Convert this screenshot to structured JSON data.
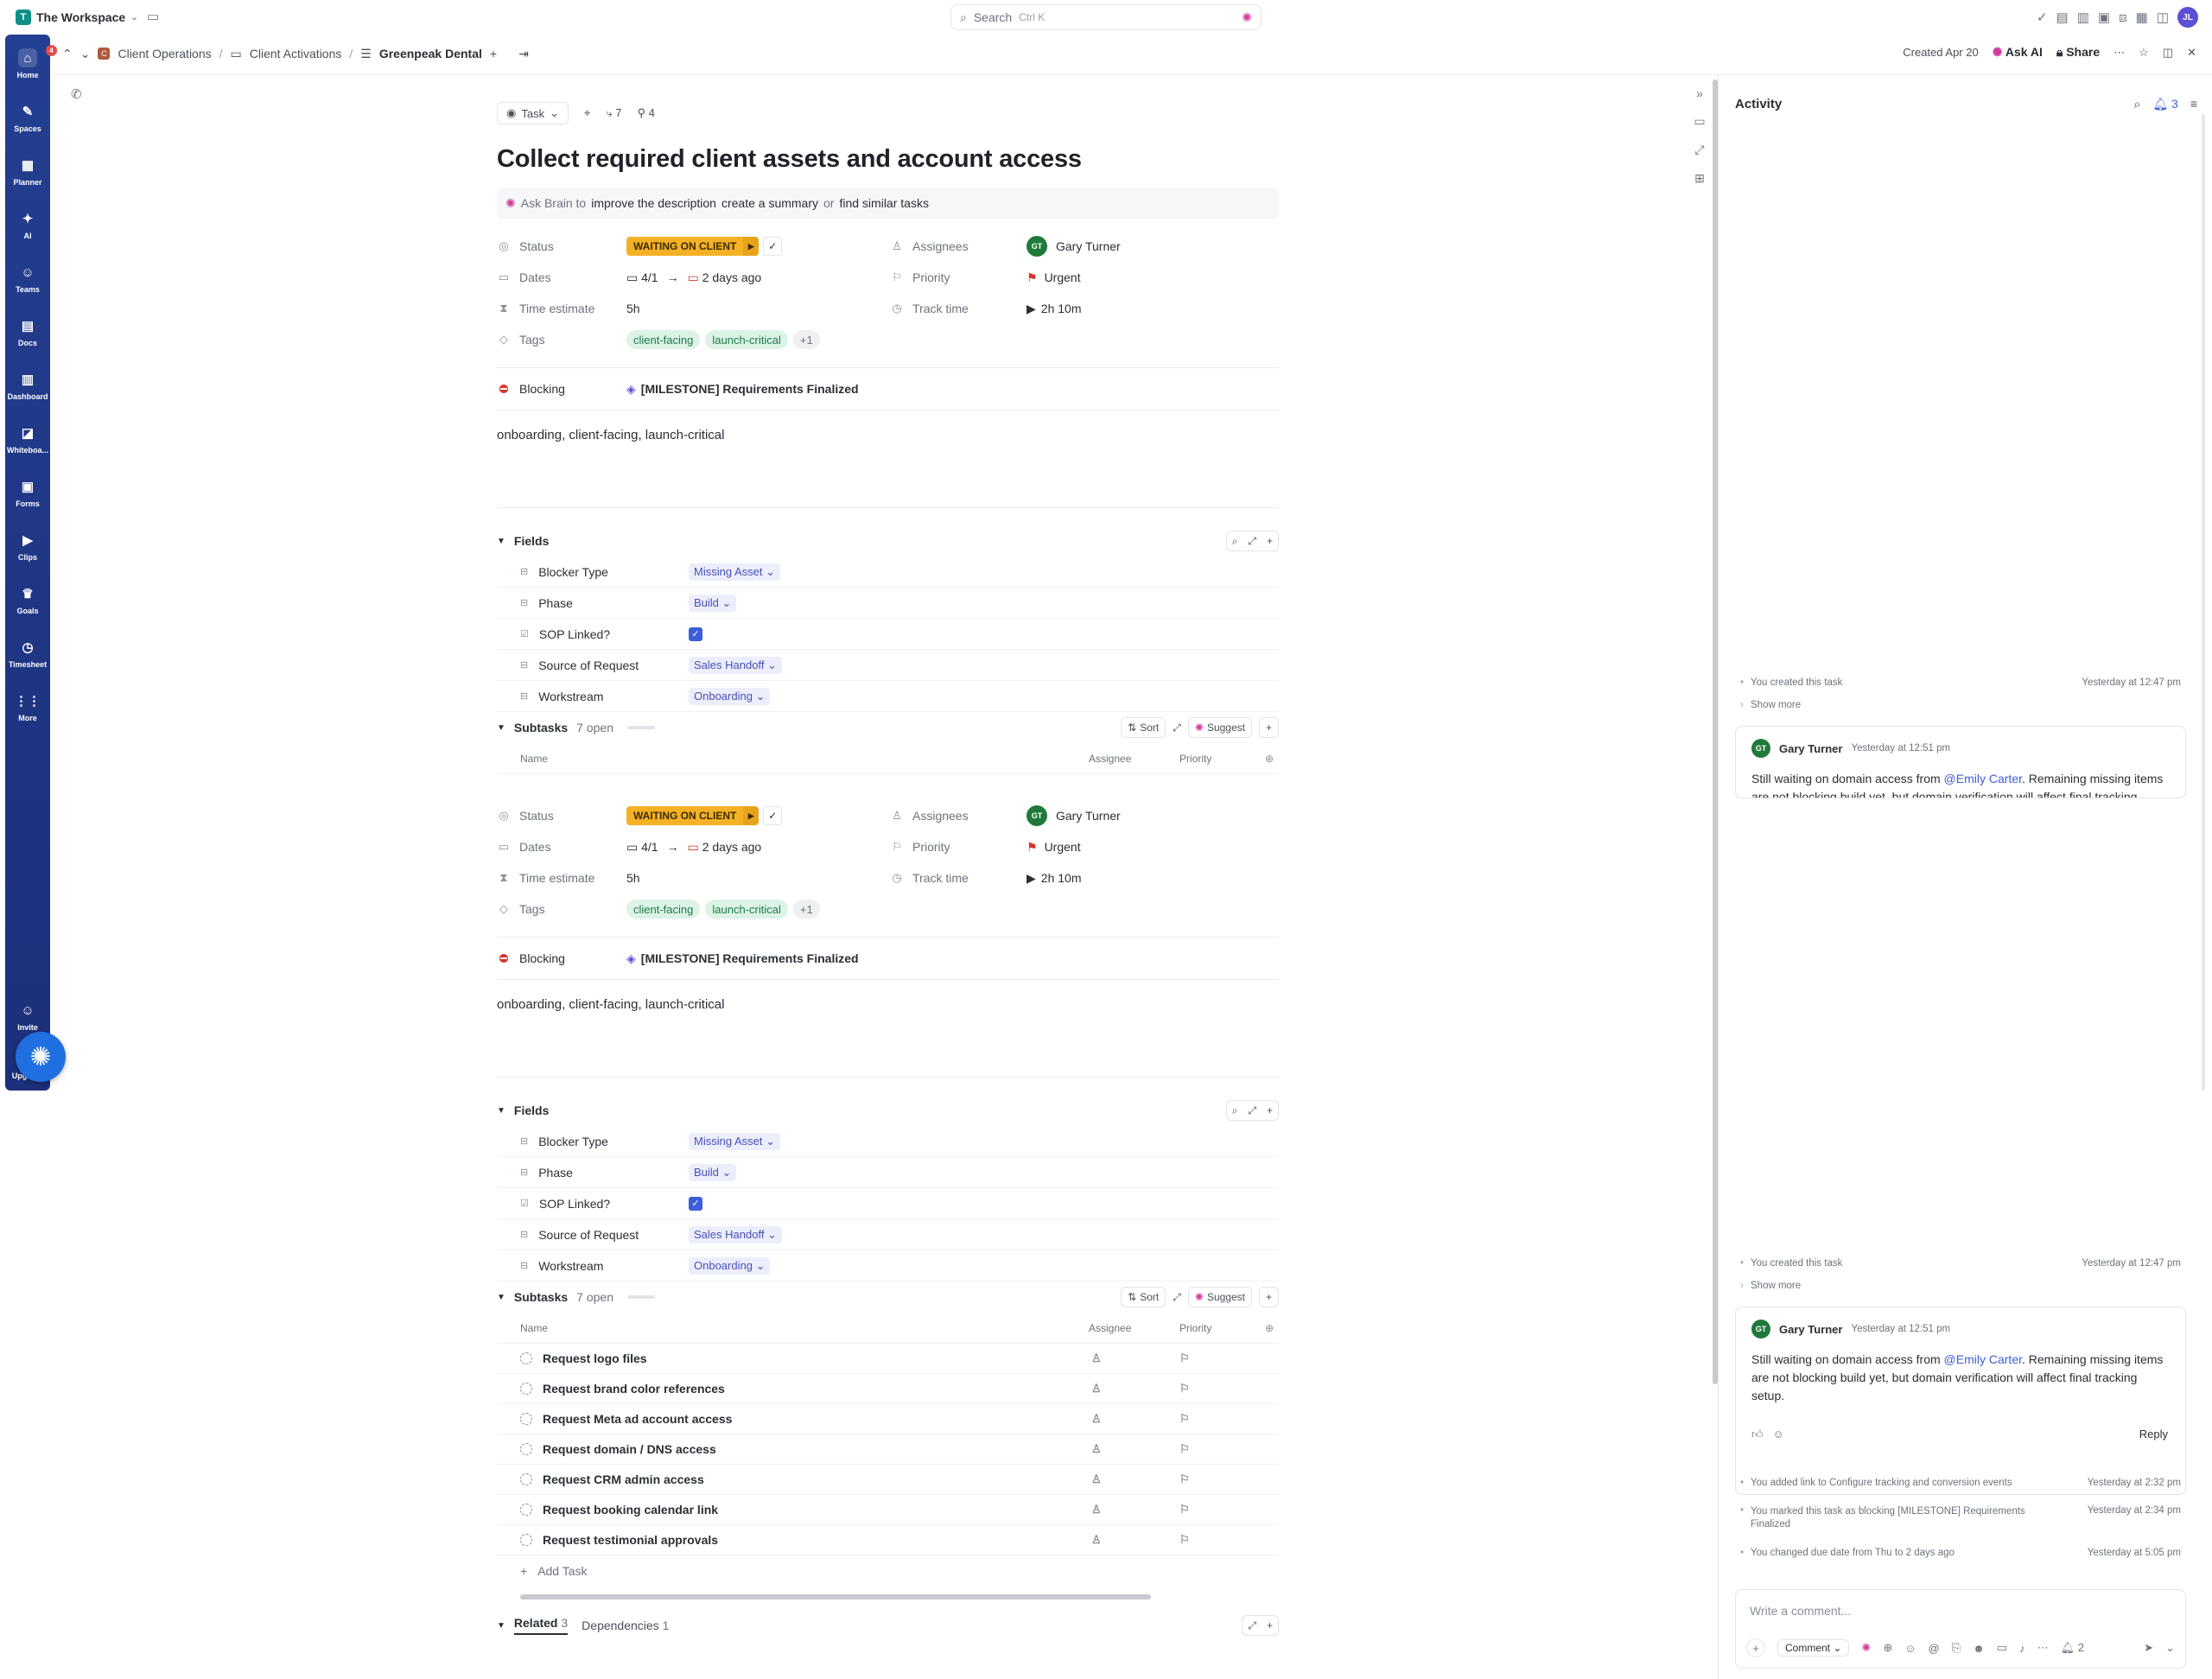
{
  "topbar": {
    "workspace": "The Workspace",
    "workspace_initial": "T",
    "search_placeholder": "Search",
    "search_shortcut": "Ctrl K",
    "user_initials": "JL"
  },
  "sidebar": {
    "items": [
      {
        "label": "Home",
        "icon": "home-icon",
        "badge": "4"
      },
      {
        "label": "Spaces",
        "icon": "spaces-icon"
      },
      {
        "label": "Planner",
        "icon": "calendar-icon"
      },
      {
        "label": "AI",
        "icon": "ai-icon"
      },
      {
        "label": "Teams",
        "icon": "teams-icon"
      },
      {
        "label": "Docs",
        "icon": "docs-icon"
      },
      {
        "label": "Dashboard",
        "icon": "dashboard-icon"
      },
      {
        "label": "Whiteboa...",
        "icon": "whiteboard-icon"
      },
      {
        "label": "Forms",
        "icon": "forms-icon"
      },
      {
        "label": "Clips",
        "icon": "clips-icon"
      },
      {
        "label": "Goals",
        "icon": "goals-icon"
      },
      {
        "label": "Timesheet",
        "icon": "clock-icon"
      },
      {
        "label": "More",
        "icon": "grid-icon"
      }
    ],
    "invite": "Invite",
    "upgrade": "Upgrade"
  },
  "breadcrumb": {
    "items": [
      "Client Operations",
      "Client Activations",
      "Greenpeak Dental"
    ]
  },
  "header": {
    "created": "Created Apr 20",
    "ask_ai": "Ask AI",
    "share": "Share"
  },
  "task": {
    "type": "Task",
    "subtasks_count": "7",
    "deps_count": "4",
    "title": "Collect required client assets and account access",
    "brain": {
      "prefix": "Ask Brain to",
      "a": "improve the description",
      "b": "create a summary",
      "or": "or",
      "c": "find similar tasks"
    },
    "labels": {
      "status": "Status",
      "dates": "Dates",
      "time_estimate": "Time estimate",
      "tags": "Tags",
      "assignees": "Assignees",
      "priority": "Priority",
      "track_time": "Track time",
      "blocking": "Blocking"
    },
    "status": "WAITING ON CLIENT",
    "start_date": "4/1",
    "due_date": "2 days ago",
    "time_estimate": "5h",
    "tags": [
      "client-facing",
      "launch-critical",
      "+1"
    ],
    "assignee": "Gary Turner",
    "assignee_initials": "GT",
    "priority": "Urgent",
    "track_time": "2h 10m",
    "blocking": "[MILESTONE] Requirements Finalized",
    "description": "onboarding, client-facing, launch-critical"
  },
  "fields": {
    "title": "Fields",
    "items": [
      {
        "label": "Blocker Type",
        "value": "Missing Asset"
      },
      {
        "label": "Phase",
        "value": "Build"
      },
      {
        "label": "SOP Linked?",
        "value": ""
      },
      {
        "label": "Source of Request",
        "value": "Sales Handoff"
      },
      {
        "label": "Workstream",
        "value": "Onboarding"
      }
    ]
  },
  "subtasks": {
    "title": "Subtasks",
    "open": "7 open",
    "sort": "Sort",
    "suggest": "Suggest",
    "cols": {
      "name": "Name",
      "assignee": "Assignee",
      "priority": "Priority"
    },
    "items": [
      "Request logo files",
      "Request brand color references",
      "Request Meta ad account access",
      "Request domain / DNS access",
      "Request CRM admin access",
      "Request booking calendar link",
      "Request testimonial approvals"
    ],
    "add": "Add Task"
  },
  "tabs": {
    "related": "Related",
    "related_count": "3",
    "dependencies": "Dependencies",
    "dependencies_count": "1"
  },
  "activity": {
    "title": "Activity",
    "notif_count": "3",
    "created": "You created this task",
    "created_time": "Yesterday at 12:47 pm",
    "show_more": "Show more",
    "comment": {
      "author": "Gary Turner",
      "initials": "GT",
      "time": "Yesterday at 12:51 pm",
      "pre": "Still waiting on domain access from",
      "mention": "@Emily Carter",
      "post": ". Remaining missing items are not blocking build yet, but domain verification will affect final tracking setup.",
      "reply": "Reply"
    },
    "events": [
      {
        "text": "You added link to Configure tracking and conversion events",
        "time": "Yesterday at 2:32 pm"
      },
      {
        "text": "You marked this task as blocking [MILESTONE] Requirements Finalized",
        "time": "Yesterday at 2:34 pm"
      },
      {
        "text": "You changed due date from Thu to 2 days ago",
        "time": "Yesterday at 5:05 pm"
      }
    ],
    "composer_placeholder": "Write a comment...",
    "comment_btn": "Comment",
    "count": "2"
  },
  "colors": {
    "sidebar": "#233f91",
    "status": "#f5b125",
    "accent": "#3d5ed8",
    "tag_bg": "#dcf3e6",
    "urgent": "#d9342b"
  }
}
